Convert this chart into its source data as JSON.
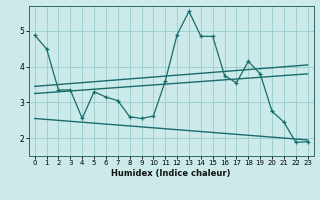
{
  "title": "",
  "xlabel": "Humidex (Indice chaleur)",
  "ylabel": "",
  "bg_color": "#cceaea",
  "line_color": "#1a6b6b",
  "grid_color": "#99cccc",
  "xlim": [
    -0.5,
    23.5
  ],
  "ylim": [
    1.5,
    5.7
  ],
  "yticks": [
    2,
    3,
    4,
    5
  ],
  "xticks": [
    0,
    1,
    2,
    3,
    4,
    5,
    6,
    7,
    8,
    9,
    10,
    11,
    12,
    13,
    14,
    15,
    16,
    17,
    18,
    19,
    20,
    21,
    22,
    23
  ],
  "series": {
    "jagged1": {
      "x": [
        0,
        1,
        2,
        3,
        4,
        5,
        6,
        7,
        8,
        9,
        10,
        11,
        12,
        13,
        14,
        15,
        16,
        17,
        18,
        19,
        20,
        21,
        22,
        23
      ],
      "y": [
        4.88,
        4.5,
        3.35,
        3.35,
        2.55,
        3.3,
        3.15,
        3.05,
        2.6,
        2.55,
        2.62,
        3.6,
        4.9,
        5.55,
        4.85,
        4.85,
        3.75,
        3.55,
        4.15,
        3.8,
        2.75,
        2.45,
        1.88,
        1.9
      ]
    },
    "line_upper": {
      "x": [
        0,
        23
      ],
      "y": [
        3.45,
        4.05
      ]
    },
    "line_mid": {
      "x": [
        0,
        23
      ],
      "y": [
        3.25,
        3.8
      ]
    },
    "line_lower": {
      "x": [
        0,
        23
      ],
      "y": [
        2.55,
        1.95
      ]
    }
  }
}
